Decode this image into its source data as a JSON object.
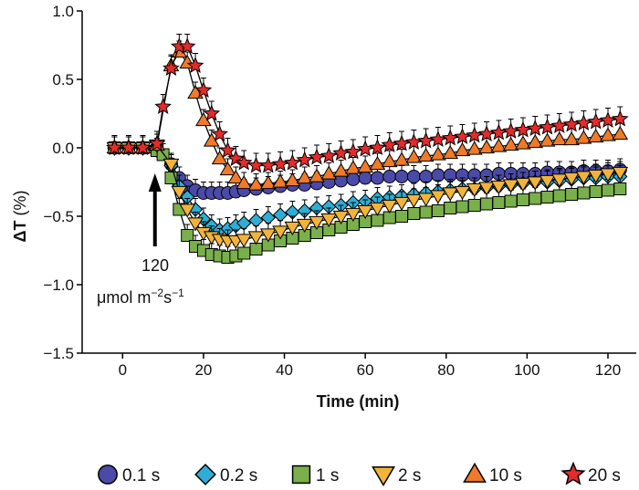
{
  "chart_data": {
    "type": "scatter",
    "title": "",
    "xlabel": "Time",
    "xlabel_unit": "(min)",
    "ylabel": "ΔT",
    "ylabel_unit": "(%)",
    "xlim": [
      -10,
      127
    ],
    "ylim": [
      -1.5,
      1.0
    ],
    "xticks": [
      0,
      20,
      40,
      60,
      80,
      100,
      120
    ],
    "yticks": [
      1.0,
      0.5,
      0.0,
      -0.5,
      -1.0,
      -1.5
    ],
    "ytick_labels": [
      "1.0",
      "0.5",
      "0.0",
      "−0.5",
      "−1.0",
      "−1.5"
    ],
    "grid": false,
    "legend_position": "bottom",
    "annotation": {
      "arrow_at_x": 8,
      "value": "120",
      "unit_prefix": "μmol m",
      "unit_exp1": "−2",
      "unit_mid": "s",
      "unit_exp2": "−1"
    },
    "series": [
      {
        "name": "0.1 s",
        "marker": "circle",
        "color": "#4a4aa8",
        "x": [
          -2,
          1.5,
          5,
          8.5,
          12,
          14,
          16,
          18,
          20,
          22,
          24,
          26,
          28,
          30,
          33,
          36,
          39,
          42,
          45,
          48,
          51,
          54,
          57,
          60,
          63,
          66,
          69,
          72,
          75,
          78,
          81,
          84,
          87,
          90,
          93,
          96,
          99,
          102,
          105,
          108,
          111,
          114,
          117,
          120,
          123
        ],
        "y": [
          0,
          0,
          0,
          -0.01,
          -0.12,
          -0.22,
          -0.28,
          -0.31,
          -0.33,
          -0.33,
          -0.33,
          -0.33,
          -0.32,
          -0.31,
          -0.3,
          -0.29,
          -0.28,
          -0.27,
          -0.27,
          -0.26,
          -0.25,
          -0.24,
          -0.23,
          -0.22,
          -0.22,
          -0.21,
          -0.21,
          -0.21,
          -0.21,
          -0.2,
          -0.2,
          -0.2,
          -0.2,
          -0.2,
          -0.19,
          -0.19,
          -0.19,
          -0.19,
          -0.18,
          -0.18,
          -0.18,
          -0.17,
          -0.17,
          -0.17,
          -0.16
        ],
        "err": 0.04
      },
      {
        "name": "0.2 s",
        "marker": "diamond",
        "color": "#2eaed6",
        "x": [
          -2,
          1.5,
          5,
          8.5,
          12,
          14,
          16,
          18,
          20,
          22,
          24,
          26,
          28,
          30,
          33,
          36,
          39,
          42,
          45,
          48,
          51,
          54,
          57,
          60,
          63,
          66,
          69,
          72,
          75,
          78,
          81,
          84,
          87,
          90,
          93,
          96,
          99,
          102,
          105,
          108,
          111,
          114,
          117,
          120,
          123
        ],
        "y": [
          0,
          0,
          0,
          -0.02,
          -0.13,
          -0.28,
          -0.36,
          -0.45,
          -0.52,
          -0.57,
          -0.6,
          -0.59,
          -0.57,
          -0.55,
          -0.53,
          -0.51,
          -0.49,
          -0.47,
          -0.46,
          -0.44,
          -0.43,
          -0.42,
          -0.4,
          -0.39,
          -0.37,
          -0.36,
          -0.35,
          -0.34,
          -0.33,
          -0.32,
          -0.31,
          -0.3,
          -0.3,
          -0.29,
          -0.28,
          -0.27,
          -0.26,
          -0.25,
          -0.25,
          -0.24,
          -0.23,
          -0.22,
          -0.22,
          -0.21,
          -0.21
        ],
        "err": 0.04
      },
      {
        "name": "1 s",
        "marker": "square",
        "color": "#7ab04c",
        "x": [
          -2,
          1.5,
          5,
          8.5,
          10,
          12,
          14,
          16,
          18,
          20,
          22,
          24,
          26,
          28,
          30,
          33,
          36,
          39,
          42,
          45,
          48,
          51,
          54,
          57,
          60,
          63,
          66,
          69,
          72,
          75,
          78,
          81,
          84,
          87,
          90,
          93,
          96,
          99,
          102,
          105,
          108,
          111,
          114,
          117,
          120,
          123
        ],
        "y": [
          0,
          0,
          0,
          -0.02,
          -0.05,
          -0.22,
          -0.45,
          -0.64,
          -0.72,
          -0.75,
          -0.78,
          -0.79,
          -0.8,
          -0.79,
          -0.77,
          -0.74,
          -0.71,
          -0.68,
          -0.66,
          -0.64,
          -0.62,
          -0.6,
          -0.58,
          -0.56,
          -0.54,
          -0.53,
          -0.51,
          -0.5,
          -0.48,
          -0.47,
          -0.46,
          -0.44,
          -0.43,
          -0.42,
          -0.41,
          -0.4,
          -0.39,
          -0.38,
          -0.37,
          -0.36,
          -0.35,
          -0.34,
          -0.33,
          -0.32,
          -0.31,
          -0.3
        ],
        "err": 0.04
      },
      {
        "name": "2 s",
        "marker": "triangle-down",
        "color": "#f2b33a",
        "x": [
          -2,
          1.5,
          5,
          8.5,
          12,
          14,
          16,
          18,
          20,
          22,
          24,
          26,
          28,
          30,
          33,
          36,
          39,
          42,
          45,
          48,
          51,
          54,
          57,
          60,
          63,
          66,
          69,
          72,
          75,
          78,
          81,
          84,
          87,
          90,
          93,
          96,
          99,
          102,
          105,
          108,
          111,
          114,
          117,
          120,
          123
        ],
        "y": [
          0,
          0,
          0,
          0.02,
          -0.12,
          -0.32,
          -0.45,
          -0.55,
          -0.62,
          -0.65,
          -0.67,
          -0.68,
          -0.68,
          -0.67,
          -0.65,
          -0.63,
          -0.61,
          -0.58,
          -0.56,
          -0.54,
          -0.52,
          -0.5,
          -0.48,
          -0.46,
          -0.44,
          -0.42,
          -0.4,
          -0.38,
          -0.37,
          -0.35,
          -0.33,
          -0.32,
          -0.3,
          -0.29,
          -0.28,
          -0.27,
          -0.26,
          -0.25,
          -0.24,
          -0.23,
          -0.22,
          -0.21,
          -0.2,
          -0.19,
          -0.18
        ],
        "err": 0.04
      },
      {
        "name": "10 s",
        "marker": "triangle-up",
        "color": "#ef7a2a",
        "x": [
          -2,
          1.5,
          5,
          8.5,
          12,
          14,
          16,
          18,
          20,
          22,
          24,
          26,
          28,
          30,
          33,
          36,
          39,
          42,
          45,
          48,
          51,
          54,
          57,
          60,
          63,
          66,
          69,
          72,
          75,
          78,
          81,
          84,
          87,
          90,
          93,
          96,
          99,
          102,
          105,
          108,
          111,
          114,
          117,
          120,
          123
        ],
        "y": [
          0,
          0,
          0,
          0.02,
          0.6,
          0.7,
          0.62,
          0.4,
          0.2,
          0.05,
          -0.08,
          -0.16,
          -0.22,
          -0.26,
          -0.27,
          -0.26,
          -0.25,
          -0.24,
          -0.22,
          -0.21,
          -0.19,
          -0.17,
          -0.15,
          -0.14,
          -0.12,
          -0.1,
          -0.09,
          -0.07,
          -0.06,
          -0.05,
          -0.04,
          -0.02,
          -0.01,
          0.0,
          0.01,
          0.02,
          0.03,
          0.04,
          0.05,
          0.06,
          0.06,
          0.07,
          0.08,
          0.09,
          0.1
        ],
        "err": 0.04
      },
      {
        "name": "20 s",
        "marker": "star",
        "color": "#e32b2b",
        "x": [
          -2,
          1.5,
          5,
          8.5,
          10,
          12,
          14,
          16,
          18,
          20,
          22,
          24,
          26,
          28,
          30,
          33,
          36,
          39,
          42,
          45,
          48,
          51,
          54,
          57,
          60,
          63,
          66,
          69,
          72,
          75,
          78,
          81,
          84,
          87,
          90,
          93,
          96,
          99,
          102,
          105,
          108,
          111,
          114,
          117,
          120,
          123
        ],
        "y": [
          0,
          0,
          0,
          0.03,
          0.3,
          0.58,
          0.74,
          0.74,
          0.6,
          0.42,
          0.25,
          0.1,
          -0.02,
          -0.08,
          -0.11,
          -0.13,
          -0.13,
          -0.12,
          -0.11,
          -0.09,
          -0.07,
          -0.06,
          -0.04,
          -0.03,
          -0.01,
          0.0,
          0.02,
          0.03,
          0.04,
          0.05,
          0.06,
          0.07,
          0.08,
          0.09,
          0.1,
          0.11,
          0.12,
          0.13,
          0.14,
          0.15,
          0.16,
          0.17,
          0.18,
          0.19,
          0.2,
          0.21
        ],
        "err": 0.05
      }
    ]
  }
}
